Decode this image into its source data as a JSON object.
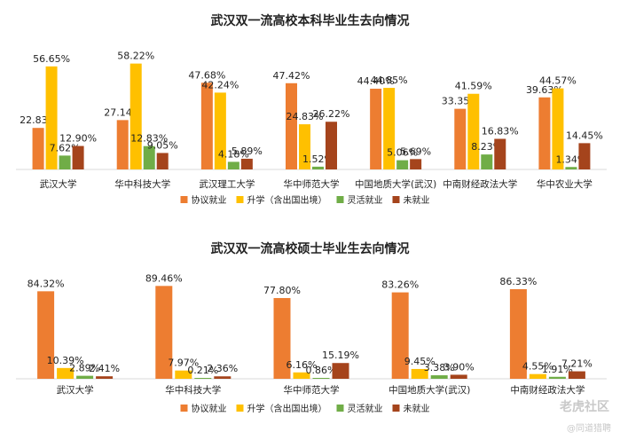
{
  "colors": {
    "employed": "#ED7D31",
    "further_study": "#FFC000",
    "flexible": "#70AD47",
    "unemployed": "#A5441C",
    "axis": "#d9d9d9",
    "text": "#222222"
  },
  "watermark": {
    "brand": "老虎社区",
    "credit": "@同道猎聘"
  },
  "chart_data": [
    {
      "type": "bar",
      "title": "武汉双一流高校本科毕业生去向情况",
      "unit": "%",
      "ylim": [
        0,
        60
      ],
      "categories": [
        "武汉大学",
        "华中科技大学",
        "武汉理工大学",
        "华中师范大学",
        "中国地质大学(武汉)",
        "中南财经政法大学",
        "华中农业大学"
      ],
      "series": [
        {
          "key": "employed",
          "name": "协议就业",
          "values": [
            22.83,
            27.14,
            47.68,
            47.42,
            44.4,
            33.35,
            39.63
          ],
          "labels": [
            "22.83%",
            "27.14%",
            "47.68%",
            "47.42%",
            "44.40%",
            "33.35%",
            "39.63%"
          ]
        },
        {
          "key": "further_study",
          "name": "升学（含出国出境）",
          "values": [
            56.65,
            58.22,
            42.24,
            24.83,
            44.85,
            41.59,
            44.57
          ],
          "labels": [
            "56.65%",
            "58.22%",
            "42.24%",
            "24.83%",
            "44.85%",
            "41.59%",
            "44.57%"
          ]
        },
        {
          "key": "flexible",
          "name": "灵活就业",
          "values": [
            7.62,
            12.83,
            4.18,
            1.52,
            5.06,
            8.23,
            1.34
          ],
          "labels": [
            "7.62%",
            "12.83%",
            "4.18%",
            "1.52%",
            "5.06%",
            "8.23%",
            "1.34%"
          ]
        },
        {
          "key": "unemployed",
          "name": "未就业",
          "values": [
            12.9,
            9.05,
            5.89,
            26.22,
            5.69,
            16.83,
            14.45
          ],
          "labels": [
            "12.90%",
            "9.05%",
            "5.89%",
            "26.22%",
            "5.69%",
            "16.83%",
            "14.45%"
          ]
        }
      ]
    },
    {
      "type": "bar",
      "title": "武汉双一流高校硕士毕业生去向情况",
      "unit": "%",
      "ylim": [
        0,
        100
      ],
      "categories": [
        "武汉大学",
        "华中科技大学",
        "华中师范大学",
        "中国地质大学(武汉)",
        "中南财经政法大学"
      ],
      "series": [
        {
          "key": "employed",
          "name": "协议就业",
          "values": [
            84.32,
            89.46,
            77.8,
            83.26,
            86.33
          ],
          "labels": [
            "84.32%",
            "89.46%",
            "77.80%",
            "83.26%",
            "86.33%"
          ]
        },
        {
          "key": "further_study",
          "name": "升学（含出国出境）",
          "values": [
            10.39,
            7.97,
            6.16,
            9.45,
            4.55
          ],
          "labels": [
            "10.39%",
            "7.97%",
            "6.16%",
            "9.45%",
            "4.55%"
          ]
        },
        {
          "key": "flexible",
          "name": "灵活就业",
          "values": [
            2.89,
            0.21,
            0.86,
            3.38,
            1.91
          ],
          "labels": [
            "2.89%",
            "0.21%",
            "0.86%",
            "3.38%",
            "1.91%"
          ]
        },
        {
          "key": "unemployed",
          "name": "未就业",
          "values": [
            2.41,
            2.36,
            15.19,
            3.9,
            7.21
          ],
          "labels": [
            "2.41%",
            "2.36%",
            "15.19%",
            "3.90%",
            "7.21%"
          ]
        }
      ]
    }
  ]
}
